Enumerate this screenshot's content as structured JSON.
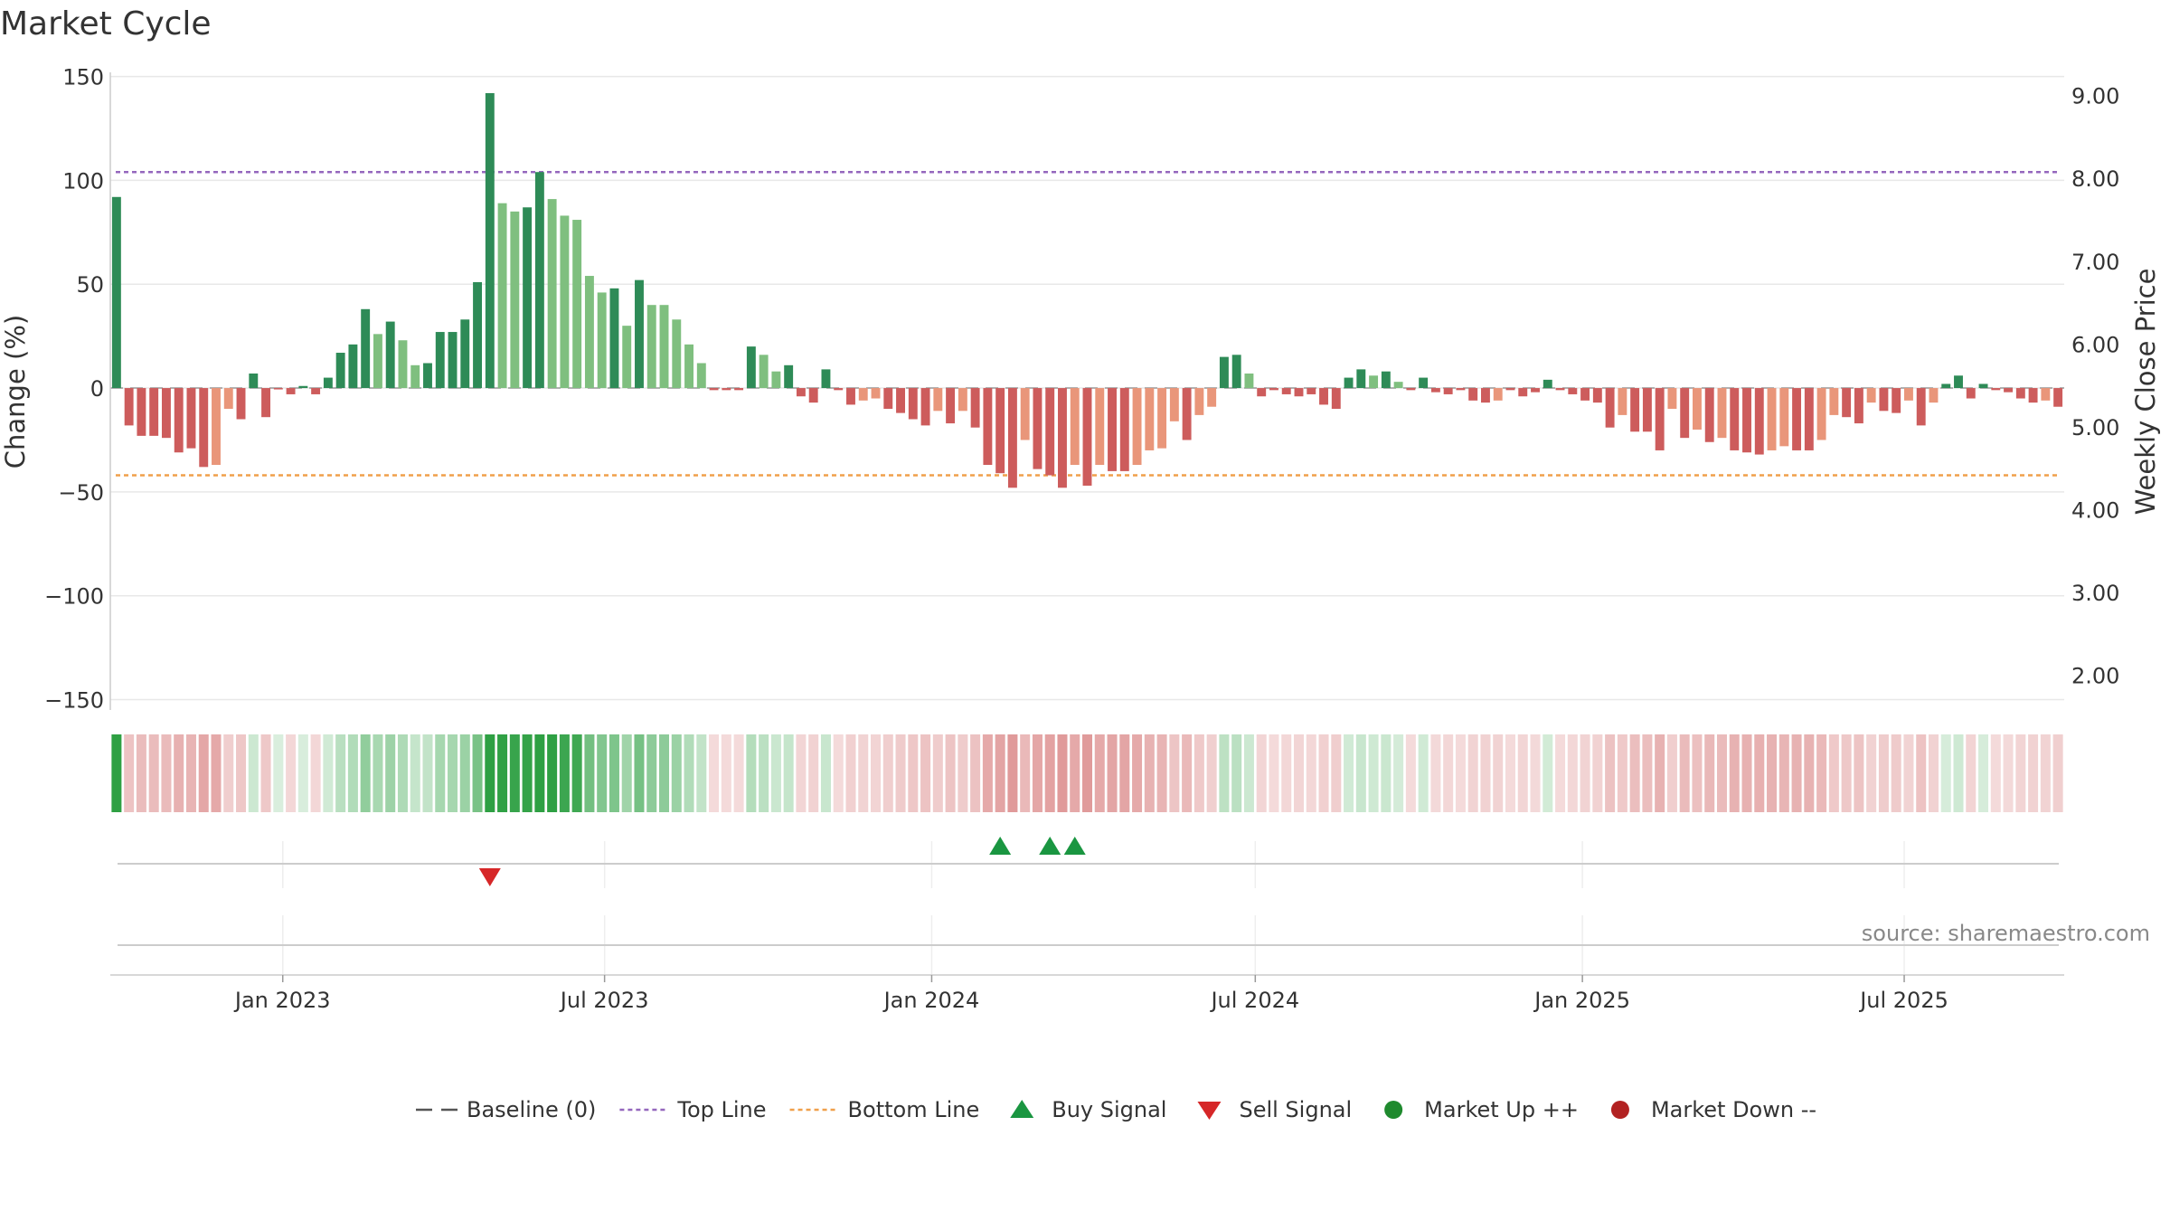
{
  "chart_data": {
    "type": "bar",
    "title": "Market Cycle",
    "ylabel_left": "Change (%)",
    "ylabel_right": "Weekly Close Price",
    "ylim_left": [
      -155,
      152
    ],
    "ylim_right": [
      1.58,
      9.28
    ],
    "yticks_left": [
      "150",
      "100",
      "50",
      "0",
      "−50",
      "−100",
      "−150"
    ],
    "yticks_left_values": [
      150,
      100,
      50,
      0,
      -50,
      -100,
      -150
    ],
    "yticks_right": [
      "9.00",
      "8.00",
      "7.00",
      "6.00",
      "5.00",
      "4.00",
      "3.00",
      "2.00"
    ],
    "yticks_right_values": [
      9,
      8,
      7,
      6,
      5,
      4,
      3,
      2
    ],
    "x_start_date": "2022-09-26",
    "x_end_date": "2025-09-29",
    "xticks": [
      "Jan 2023",
      "Jul 2023",
      "Jan 2024",
      "Jul 2024",
      "Jan 2025",
      "Jul 2025"
    ],
    "xticks_dates": [
      "2023-01-01",
      "2023-07-01",
      "2024-01-01",
      "2024-07-01",
      "2025-01-01",
      "2025-07-01"
    ],
    "top_line": 104,
    "bottom_line": -42,
    "grid": true,
    "values": [
      92,
      -18,
      -23,
      -23,
      -24,
      -31,
      -29,
      -38,
      -37,
      -10,
      -15,
      7,
      -14,
      0,
      -3,
      1,
      -3,
      5,
      17,
      21,
      38,
      26,
      32,
      23,
      11,
      12,
      27,
      27,
      33,
      51,
      142,
      89,
      85,
      87,
      104,
      91,
      83,
      81,
      54,
      46,
      48,
      30,
      52,
      40,
      40,
      33,
      21,
      12,
      -1,
      -1,
      -1,
      20,
      16,
      8,
      11,
      -4,
      -7,
      9,
      -1,
      -8,
      -6,
      -5,
      -10,
      -12,
      -15,
      -18,
      -11,
      -17,
      -11,
      -19,
      -37,
      -41,
      -48,
      -25,
      -39,
      -42,
      -48,
      -37,
      -47,
      -37,
      -40,
      -40,
      -37,
      -30,
      -29,
      -16,
      -25,
      -13,
      -9,
      15,
      16,
      7,
      -4,
      -1,
      -3,
      -4,
      -3,
      -8,
      -10,
      5,
      9,
      6,
      8,
      3,
      -1,
      5,
      -2,
      -3,
      -1,
      -6,
      -7,
      -6,
      -1,
      -4,
      -2,
      4,
      -1,
      -3,
      -6,
      -7,
      -19,
      -13,
      -21,
      -21,
      -30,
      -10,
      -24,
      -20,
      -26,
      -24,
      -30,
      -31,
      -32,
      -30,
      -28,
      -30,
      -30,
      -25,
      -13,
      -14,
      -17,
      -7,
      -11,
      -12,
      -6,
      -18,
      -7,
      2,
      6,
      -5,
      2,
      -1,
      -2,
      -5,
      -7,
      -6,
      -9
    ],
    "bar_shades": [
      "dark-green",
      "red",
      "red",
      "red",
      "red",
      "red",
      "red",
      "red",
      "salmon",
      "salmon",
      "red",
      "dark-green",
      "red",
      "red",
      "red",
      "dark-green",
      "red",
      "dark-green",
      "dark-green",
      "dark-green",
      "dark-green",
      "light-green",
      "dark-green",
      "light-green",
      "light-green",
      "dark-green",
      "dark-green",
      "dark-green",
      "dark-green",
      "dark-green",
      "dark-green",
      "light-green",
      "light-green",
      "dark-green",
      "dark-green",
      "light-green",
      "light-green",
      "light-green",
      "light-green",
      "light-green",
      "dark-green",
      "light-green",
      "dark-green",
      "light-green",
      "light-green",
      "light-green",
      "light-green",
      "light-green",
      "red",
      "red",
      "red",
      "dark-green",
      "light-green",
      "light-green",
      "dark-green",
      "red",
      "red",
      "dark-green",
      "red",
      "red",
      "salmon",
      "salmon",
      "red",
      "red",
      "red",
      "red",
      "salmon",
      "red",
      "salmon",
      "red",
      "red",
      "red",
      "red",
      "salmon",
      "red",
      "red",
      "red",
      "salmon",
      "red",
      "salmon",
      "red",
      "red",
      "salmon",
      "salmon",
      "salmon",
      "salmon",
      "red",
      "salmon",
      "salmon",
      "dark-green",
      "dark-green",
      "light-green",
      "red",
      "red",
      "red",
      "red",
      "red",
      "red",
      "red",
      "dark-green",
      "dark-green",
      "light-green",
      "dark-green",
      "light-green",
      "red",
      "dark-green",
      "red",
      "red",
      "red",
      "red",
      "red",
      "salmon",
      "red",
      "red",
      "red",
      "dark-green",
      "red",
      "red",
      "red",
      "red",
      "red",
      "salmon",
      "red",
      "red",
      "red",
      "salmon",
      "red",
      "salmon",
      "red",
      "salmon",
      "red",
      "red",
      "red",
      "salmon",
      "salmon",
      "red",
      "red",
      "salmon",
      "salmon",
      "red",
      "red",
      "salmon",
      "red",
      "red",
      "salmon",
      "red",
      "salmon",
      "dark-green",
      "dark-green",
      "red",
      "dark-green",
      "red",
      "red",
      "red",
      "red",
      "salmon",
      "red"
    ],
    "buy_signal_indices": [
      71,
      75,
      77
    ],
    "sell_signal_indices": [
      30
    ],
    "source_text": "source: sharemaestro.com",
    "legend": [
      {
        "label": "Baseline (0)",
        "marker": "dash-line",
        "color": "#555555"
      },
      {
        "label": "Top Line",
        "marker": "dotted-line",
        "color": "#9467bd"
      },
      {
        "label": "Bottom Line",
        "marker": "dotted-line",
        "color": "#f0a04b"
      },
      {
        "label": "Buy Signal",
        "marker": "triangle-up",
        "color": "#1a9641"
      },
      {
        "label": "Sell Signal",
        "marker": "triangle-down",
        "color": "#d62728"
      },
      {
        "label": "Market Up ++",
        "marker": "circle",
        "color": "#1f8a2e"
      },
      {
        "label": "Market Down --",
        "marker": "circle",
        "color": "#b22222"
      }
    ],
    "legend_position": "bottom-center",
    "colors": {
      "dark-green": "#2e8b57",
      "light-green": "#7fbf7f",
      "red": "#cd5c5c",
      "salmon": "#e9967a",
      "top_line": "#9467bd",
      "bottom_line": "#f0a04b",
      "buy": "#1a9641",
      "sell": "#d62728"
    }
  }
}
